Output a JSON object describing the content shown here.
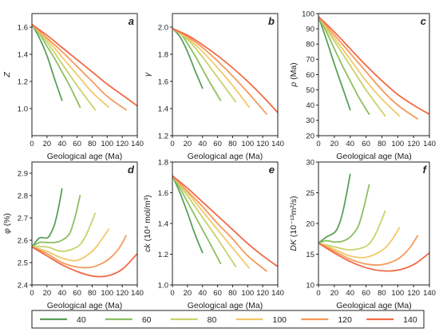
{
  "chart_data": [
    {
      "type": "line",
      "panel_letter": "a",
      "ylabel_main": "Z",
      "ylabel_unit": "",
      "xlabel": "Geological age (Ma)",
      "xlim": [
        0,
        140
      ],
      "ylim": [
        0.8,
        1.7
      ],
      "xticks": [
        "0",
        "20",
        "40",
        "60",
        "80",
        "100",
        "120",
        "140"
      ],
      "yticks": [
        "1.0",
        "1.2",
        "1.4",
        "1.6"
      ],
      "series": [
        {
          "name": "40",
          "color": "#5aa05a",
          "x": [
            0,
            10,
            20,
            30,
            40
          ],
          "y": [
            1.62,
            1.52,
            1.39,
            1.22,
            1.06
          ]
        },
        {
          "name": "60",
          "color": "#8cc060",
          "x": [
            0,
            10,
            20,
            30,
            40,
            50,
            64
          ],
          "y": [
            1.62,
            1.55,
            1.46,
            1.37,
            1.27,
            1.17,
            1.01
          ]
        },
        {
          "name": "80",
          "color": "#c8d26a",
          "x": [
            0,
            20,
            40,
            60,
            84
          ],
          "y": [
            1.62,
            1.49,
            1.33,
            1.17,
            0.99
          ]
        },
        {
          "name": "100",
          "color": "#f2c96a",
          "x": [
            0,
            20,
            40,
            60,
            80,
            102
          ],
          "y": [
            1.62,
            1.51,
            1.38,
            1.25,
            1.12,
            1.01
          ]
        },
        {
          "name": "120",
          "color": "#f59a5c",
          "x": [
            0,
            20,
            40,
            60,
            80,
            100,
            125
          ],
          "y": [
            1.62,
            1.52,
            1.42,
            1.31,
            1.2,
            1.09,
            0.99
          ]
        },
        {
          "name": "140",
          "color": "#f06a46",
          "x": [
            0,
            20,
            40,
            60,
            80,
            100,
            120,
            140
          ],
          "y": [
            1.62,
            1.54,
            1.45,
            1.36,
            1.27,
            1.18,
            1.1,
            1.02
          ]
        }
      ]
    },
    {
      "type": "line",
      "panel_letter": "b",
      "ylabel_main": "γ",
      "ylabel_unit": "",
      "xlabel": "Geological age (Ma)",
      "xlim": [
        0,
        140
      ],
      "ylim": [
        1.2,
        2.1
      ],
      "xticks": [
        "0",
        "20",
        "40",
        "60",
        "80",
        "100",
        "120",
        "140"
      ],
      "yticks": [
        "1.2",
        "1.4",
        "1.6",
        "1.8",
        "2.0"
      ],
      "series": [
        {
          "name": "40",
          "color": "#5aa05a",
          "x": [
            0,
            10,
            20,
            30,
            40
          ],
          "y": [
            1.99,
            1.93,
            1.82,
            1.68,
            1.55
          ]
        },
        {
          "name": "60",
          "color": "#8cc060",
          "x": [
            0,
            10,
            20,
            30,
            40,
            50,
            64
          ],
          "y": [
            1.99,
            1.96,
            1.88,
            1.79,
            1.69,
            1.59,
            1.46
          ]
        },
        {
          "name": "80",
          "color": "#c8d26a",
          "x": [
            0,
            20,
            40,
            60,
            84
          ],
          "y": [
            1.99,
            1.91,
            1.78,
            1.63,
            1.45
          ]
        },
        {
          "name": "100",
          "color": "#f2c96a",
          "x": [
            0,
            20,
            40,
            60,
            80,
            102
          ],
          "y": [
            1.99,
            1.92,
            1.82,
            1.7,
            1.57,
            1.41
          ]
        },
        {
          "name": "120",
          "color": "#f59a5c",
          "x": [
            0,
            20,
            40,
            60,
            80,
            100,
            125
          ],
          "y": [
            1.99,
            1.93,
            1.85,
            1.75,
            1.64,
            1.52,
            1.36
          ]
        },
        {
          "name": "140",
          "color": "#f06a46",
          "x": [
            0,
            20,
            40,
            60,
            80,
            100,
            120,
            140
          ],
          "y": [
            1.99,
            1.94,
            1.87,
            1.79,
            1.7,
            1.6,
            1.49,
            1.37
          ]
        }
      ]
    },
    {
      "type": "line",
      "panel_letter": "c",
      "ylabel_main": "p",
      "ylabel_unit": " (Ma)",
      "xlabel": "Geological age (Ma)",
      "xlim": [
        0,
        140
      ],
      "ylim": [
        20,
        100
      ],
      "xticks": [
        "0",
        "20",
        "40",
        "60",
        "80",
        "100",
        "120",
        "140"
      ],
      "yticks": [
        "20",
        "30",
        "40",
        "50",
        "60",
        "70",
        "80",
        "90",
        "100"
      ],
      "series": [
        {
          "name": "40",
          "color": "#5aa05a",
          "x": [
            0,
            10,
            20,
            30,
            40
          ],
          "y": [
            98,
            83,
            67,
            52,
            37
          ]
        },
        {
          "name": "60",
          "color": "#8cc060",
          "x": [
            0,
            10,
            20,
            30,
            40,
            50,
            64
          ],
          "y": [
            98,
            88,
            77,
            66,
            56,
            46,
            34
          ]
        },
        {
          "name": "80",
          "color": "#c8d26a",
          "x": [
            0,
            20,
            40,
            60,
            84
          ],
          "y": [
            98,
            82,
            66,
            50,
            33
          ]
        },
        {
          "name": "100",
          "color": "#f2c96a",
          "x": [
            0,
            20,
            40,
            60,
            80,
            102
          ],
          "y": [
            98,
            84,
            70,
            56,
            44,
            33
          ]
        },
        {
          "name": "120",
          "color": "#f59a5c",
          "x": [
            0,
            20,
            40,
            60,
            80,
            100,
            125
          ],
          "y": [
            98,
            86,
            74,
            62,
            50,
            40,
            31
          ]
        },
        {
          "name": "140",
          "color": "#f06a46",
          "x": [
            0,
            20,
            40,
            60,
            80,
            100,
            120,
            140
          ],
          "y": [
            98,
            88,
            77,
            66,
            56,
            47,
            40,
            34
          ]
        }
      ]
    },
    {
      "type": "line",
      "panel_letter": "d",
      "ylabel_main": "φ",
      "ylabel_unit": " (%)",
      "xlabel": "Geological age (Ma)",
      "xlim": [
        0,
        140
      ],
      "ylim": [
        2.4,
        2.95
      ],
      "xticks": [
        "0",
        "20",
        "40",
        "60",
        "80",
        "100",
        "120",
        "140"
      ],
      "yticks": [
        "2.4",
        "2.5",
        "2.6",
        "2.7",
        "2.8",
        "2.9"
      ],
      "series": [
        {
          "name": "40",
          "color": "#5aa05a",
          "x": [
            0,
            10,
            20,
            25,
            30,
            35,
            40
          ],
          "y": [
            2.57,
            2.61,
            2.61,
            2.63,
            2.67,
            2.74,
            2.83
          ]
        },
        {
          "name": "60",
          "color": "#8cc060",
          "x": [
            0,
            10,
            20,
            30,
            40,
            50,
            57,
            64
          ],
          "y": [
            2.57,
            2.59,
            2.59,
            2.59,
            2.6,
            2.63,
            2.7,
            2.8
          ]
        },
        {
          "name": "80",
          "color": "#c8d26a",
          "x": [
            0,
            20,
            40,
            60,
            70,
            78,
            84
          ],
          "y": [
            2.57,
            2.57,
            2.55,
            2.57,
            2.61,
            2.67,
            2.72
          ]
        },
        {
          "name": "100",
          "color": "#f2c96a",
          "x": [
            0,
            20,
            40,
            60,
            80,
            92,
            102
          ],
          "y": [
            2.57,
            2.55,
            2.52,
            2.51,
            2.55,
            2.6,
            2.65
          ]
        },
        {
          "name": "120",
          "color": "#f59a5c",
          "x": [
            0,
            20,
            40,
            60,
            80,
            100,
            115,
            125
          ],
          "y": [
            2.57,
            2.54,
            2.5,
            2.48,
            2.48,
            2.51,
            2.56,
            2.62
          ]
        },
        {
          "name": "140",
          "color": "#f06a46",
          "x": [
            0,
            20,
            40,
            60,
            80,
            100,
            120,
            140
          ],
          "y": [
            2.57,
            2.53,
            2.49,
            2.46,
            2.44,
            2.44,
            2.47,
            2.54
          ]
        }
      ]
    },
    {
      "type": "line",
      "panel_letter": "e",
      "ylabel_main": "ck",
      "ylabel_unit": " (10⁴ mol/m³)",
      "xlabel": "Geological age (Ma)",
      "xlim": [
        0,
        140
      ],
      "ylim": [
        1.0,
        1.8
      ],
      "xticks": [
        "0",
        "20",
        "40",
        "60",
        "80",
        "100",
        "120",
        "140"
      ],
      "yticks": [
        "1.0",
        "1.2",
        "1.4",
        "1.6",
        "1.8"
      ],
      "series": [
        {
          "name": "40",
          "color": "#5aa05a",
          "x": [
            0,
            10,
            20,
            30,
            40
          ],
          "y": [
            1.71,
            1.6,
            1.47,
            1.33,
            1.21
          ]
        },
        {
          "name": "60",
          "color": "#8cc060",
          "x": [
            0,
            10,
            20,
            30,
            40,
            50,
            64
          ],
          "y": [
            1.71,
            1.63,
            1.54,
            1.45,
            1.36,
            1.27,
            1.14
          ]
        },
        {
          "name": "80",
          "color": "#c8d26a",
          "x": [
            0,
            20,
            40,
            60,
            84
          ],
          "y": [
            1.71,
            1.58,
            1.44,
            1.3,
            1.12
          ]
        },
        {
          "name": "100",
          "color": "#f2c96a",
          "x": [
            0,
            20,
            40,
            60,
            80,
            102
          ],
          "y": [
            1.71,
            1.6,
            1.48,
            1.36,
            1.24,
            1.11
          ]
        },
        {
          "name": "120",
          "color": "#f59a5c",
          "x": [
            0,
            20,
            40,
            60,
            80,
            100,
            125
          ],
          "y": [
            1.71,
            1.61,
            1.51,
            1.4,
            1.3,
            1.19,
            1.09
          ]
        },
        {
          "name": "140",
          "color": "#f06a46",
          "x": [
            0,
            20,
            40,
            60,
            80,
            100,
            120,
            140
          ],
          "y": [
            1.71,
            1.63,
            1.54,
            1.45,
            1.36,
            1.27,
            1.19,
            1.12
          ]
        }
      ]
    },
    {
      "type": "line",
      "panel_letter": "f",
      "ylabel_main": "DK",
      "ylabel_unit": " (10⁻¹³m²/s)",
      "xlabel": "Geological age (Ma)",
      "xlim": [
        0,
        140
      ],
      "ylim": [
        10,
        30
      ],
      "xticks": [
        "0",
        "20",
        "40",
        "60",
        "80",
        "100",
        "120",
        "140"
      ],
      "yticks": [
        "10",
        "15",
        "20",
        "25",
        "30"
      ],
      "series": [
        {
          "name": "40",
          "color": "#5aa05a",
          "x": [
            0,
            10,
            20,
            25,
            30,
            35,
            40
          ],
          "y": [
            16.8,
            17.8,
            18.5,
            19.5,
            21.5,
            24.5,
            28.0
          ]
        },
        {
          "name": "60",
          "color": "#8cc060",
          "x": [
            0,
            10,
            20,
            30,
            40,
            50,
            57,
            64
          ],
          "y": [
            16.8,
            17.2,
            17.0,
            17.1,
            17.8,
            19.5,
            22.5,
            26.3
          ]
        },
        {
          "name": "80",
          "color": "#c8d26a",
          "x": [
            0,
            20,
            40,
            60,
            70,
            78,
            84
          ],
          "y": [
            16.8,
            16.2,
            15.7,
            16.3,
            17.8,
            20.0,
            22.0
          ]
        },
        {
          "name": "100",
          "color": "#f2c96a",
          "x": [
            0,
            20,
            40,
            60,
            80,
            92,
            102
          ],
          "y": [
            16.8,
            15.8,
            14.7,
            14.5,
            15.6,
            17.2,
            19.3
          ]
        },
        {
          "name": "120",
          "color": "#f59a5c",
          "x": [
            0,
            20,
            40,
            60,
            80,
            100,
            115,
            125
          ],
          "y": [
            16.8,
            15.5,
            14.2,
            13.4,
            13.3,
            14.2,
            16.0,
            18.0
          ]
        },
        {
          "name": "140",
          "color": "#f06a46",
          "x": [
            0,
            20,
            40,
            60,
            80,
            100,
            120,
            140
          ],
          "y": [
            16.8,
            15.2,
            13.8,
            12.8,
            12.3,
            12.4,
            13.3,
            15.2
          ]
        }
      ]
    }
  ],
  "legend": [
    {
      "label": "40",
      "color": "#5aa05a"
    },
    {
      "label": "60",
      "color": "#8cc060"
    },
    {
      "label": "80",
      "color": "#c8d26a"
    },
    {
      "label": "100",
      "color": "#f2c96a"
    },
    {
      "label": "120",
      "color": "#f59a5c"
    },
    {
      "label": "140",
      "color": "#f06a46"
    }
  ]
}
